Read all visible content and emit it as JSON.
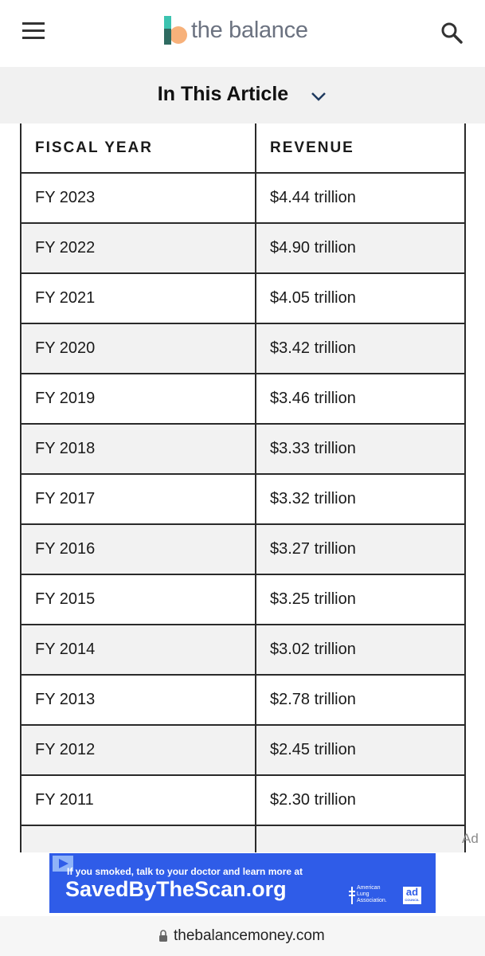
{
  "header": {
    "logo": "the balance"
  },
  "nav": {
    "title": "In This Article"
  },
  "table": {
    "columns": [
      "FISCAL YEAR",
      "REVENUE"
    ],
    "rows": [
      [
        "FY 2023",
        "$4.44 trillion"
      ],
      [
        "FY 2022",
        "$4.90 trillion"
      ],
      [
        "FY 2021",
        "$4.05 trillion"
      ],
      [
        "FY 2020",
        "$3.42 trillion"
      ],
      [
        "FY 2019",
        "$3.46 trillion"
      ],
      [
        "FY 2018",
        "$3.33 trillion"
      ],
      [
        "FY 2017",
        "$3.32 trillion"
      ],
      [
        "FY 2016",
        "$3.27 trillion"
      ],
      [
        "FY 2015",
        "$3.25 trillion"
      ],
      [
        "FY 2014",
        "$3.02 trillion"
      ],
      [
        "FY 2013",
        "$2.78 trillion"
      ],
      [
        "FY 2012",
        "$2.45 trillion"
      ],
      [
        "FY 2011",
        "$2.30 trillion"
      ]
    ]
  },
  "ad": {
    "label": "Ad",
    "line1": "If you smoked, talk to your doctor and learn more at",
    "line2": "SavedByTheScan.org",
    "sponsor": [
      "American",
      "Lung",
      "Association."
    ],
    "council": [
      "ad",
      "COUNCIL"
    ]
  },
  "browser": {
    "url": "thebalancemoney.com"
  }
}
